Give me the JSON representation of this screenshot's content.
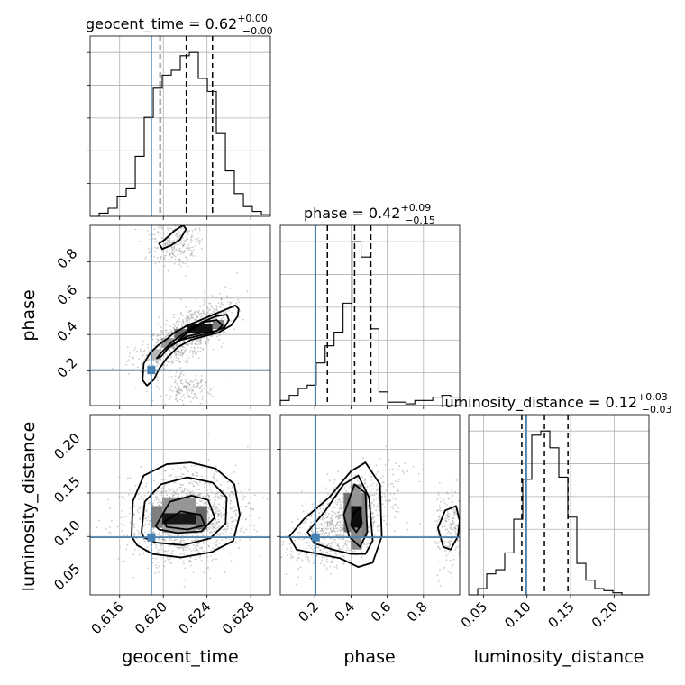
{
  "chart_data": {
    "type": "corner",
    "parameters": [
      "geocent_time",
      "phase",
      "luminosity_distance"
    ],
    "truths": {
      "geocent_time": 0.6189,
      "phase": 0.205,
      "luminosity_distance": 0.099
    },
    "truth_color": "#4682b4",
    "ranges": {
      "geocent_time": [
        0.6133,
        0.6298
      ],
      "phase": [
        0.01,
        1.0
      ],
      "luminosity_distance": [
        0.033,
        0.24
      ]
    },
    "ticks": {
      "geocent_time": {
        "values": [
          0.616,
          0.62,
          0.624,
          0.628
        ],
        "labels": [
          "0.616",
          "0.620",
          "0.624",
          "0.628"
        ]
      },
      "phase": {
        "values": [
          0.2,
          0.4,
          0.6,
          0.8
        ],
        "labels": [
          "0.2",
          "0.4",
          "0.6",
          "0.8"
        ]
      },
      "luminosity_distance": {
        "values": [
          0.05,
          0.1,
          0.15,
          0.2
        ],
        "labels": [
          "0.05",
          "0.10",
          "0.15",
          "0.20"
        ]
      }
    },
    "titles": [
      {
        "param": "geocent_time",
        "prefix": "geocent_time = 0.62",
        "plus": "+0.00",
        "minus": "−0.00"
      },
      {
        "param": "phase",
        "prefix": "phase = 0.42",
        "plus": "+0.09",
        "minus": "−0.15"
      },
      {
        "param": "luminosity_distance",
        "prefix": "luminosity_distance = 0.12",
        "plus": "+0.03",
        "minus": "−0.03"
      }
    ],
    "quantiles": {
      "geocent_time": [
        0.6197,
        0.6221,
        0.6245
      ],
      "phase": [
        0.27,
        0.42,
        0.51
      ],
      "luminosity_distance": [
        0.094,
        0.12,
        0.147
      ]
    },
    "histograms": {
      "geocent_time": {
        "edges": [
          0.6133,
          0.61413,
          0.61495,
          0.61578,
          0.6166,
          0.61743,
          0.61825,
          0.61908,
          0.6199,
          0.62073,
          0.62155,
          0.62238,
          0.6232,
          0.62403,
          0.62485,
          0.62568,
          0.6265,
          0.62733,
          0.62815,
          0.62898,
          0.6298
        ],
        "counts": [
          0,
          2,
          5,
          12,
          17,
          37,
          61,
          79,
          87,
          90,
          99,
          101,
          85,
          77,
          51,
          28,
          14,
          6,
          3,
          1
        ]
      },
      "phase": {
        "edges": [
          0.01,
          0.0595,
          0.109,
          0.1585,
          0.208,
          0.2575,
          0.307,
          0.3565,
          0.406,
          0.4555,
          0.505,
          0.5545,
          0.604,
          0.6535,
          0.703,
          0.7525,
          0.802,
          0.8515,
          0.901,
          0.9505,
          1.0
        ],
        "counts": [
          3,
          6,
          10,
          12,
          25,
          35,
          43,
          60,
          96,
          87,
          45,
          8,
          2,
          2,
          1,
          3,
          3,
          5,
          6,
          5
        ]
      },
      "luminosity_distance": {
        "edges": [
          0.033,
          0.04335,
          0.0537,
          0.06405,
          0.0744,
          0.08475,
          0.0951,
          0.10545,
          0.1158,
          0.12615,
          0.1365,
          0.14685,
          0.1572,
          0.16755,
          0.1779,
          0.18825,
          0.1986,
          0.20895,
          0.2193,
          0.22965,
          0.24
        ],
        "counts": [
          0,
          3,
          10,
          12,
          20,
          36,
          55,
          76,
          78,
          70,
          56,
          37,
          15,
          7,
          3,
          2,
          1,
          0,
          0,
          0
        ]
      }
    },
    "contours_2d": {
      "phase_vs_geocent_time": [
        {
          "x": [
            0.6182,
            0.6188,
            0.6195,
            0.6202,
            0.621,
            0.6222,
            0.6234,
            0.6246,
            0.6258,
            0.6266,
            0.6269,
            0.6268,
            0.6262,
            0.625,
            0.6237,
            0.6225,
            0.6213,
            0.6203,
            0.6196,
            0.6191,
            0.6185,
            0.6181
          ],
          "y": [
            0.24,
            0.3,
            0.34,
            0.37,
            0.41,
            0.45,
            0.48,
            0.51,
            0.54,
            0.56,
            0.54,
            0.5,
            0.45,
            0.41,
            0.39,
            0.37,
            0.33,
            0.27,
            0.21,
            0.15,
            0.12,
            0.15
          ]
        },
        {
          "x": [
            0.6198,
            0.6208,
            0.6222,
            0.6236,
            0.6248,
            0.6258,
            0.626,
            0.6256,
            0.6244,
            0.623,
            0.6216,
            0.6205,
            0.6198,
            0.6194
          ],
          "y": [
            0.3,
            0.36,
            0.42,
            0.47,
            0.5,
            0.51,
            0.48,
            0.44,
            0.41,
            0.39,
            0.37,
            0.33,
            0.28,
            0.27
          ]
        },
        {
          "x": [
            0.6212,
            0.6224,
            0.6238,
            0.6249,
            0.6254,
            0.6249,
            0.6236,
            0.6222,
            0.6212,
            0.6207
          ],
          "y": [
            0.36,
            0.42,
            0.47,
            0.48,
            0.45,
            0.42,
            0.41,
            0.39,
            0.36,
            0.34
          ]
        },
        {
          "x": [
            0.6199,
            0.6207,
            0.6215,
            0.6221,
            0.6218,
            0.621,
            0.6201,
            0.6196
          ],
          "y": [
            0.87,
            0.89,
            0.92,
            0.98,
            1.0,
            0.97,
            0.92,
            0.9
          ]
        }
      ],
      "lumdist_vs_geocent_time": [
        {
          "x": [
            0.6171,
            0.6172,
            0.6182,
            0.6203,
            0.6225,
            0.6248,
            0.6265,
            0.627,
            0.6264,
            0.6244,
            0.6216,
            0.619,
            0.6176
          ],
          "y": [
            0.1,
            0.14,
            0.17,
            0.183,
            0.185,
            0.178,
            0.16,
            0.125,
            0.095,
            0.082,
            0.076,
            0.08,
            0.09
          ]
        },
        {
          "x": [
            0.618,
            0.6183,
            0.6198,
            0.6222,
            0.6245,
            0.6258,
            0.6257,
            0.6243,
            0.6218,
            0.6193,
            0.6182
          ],
          "y": [
            0.105,
            0.14,
            0.16,
            0.168,
            0.162,
            0.145,
            0.115,
            0.098,
            0.09,
            0.093,
            0.099
          ]
        },
        {
          "x": [
            0.6193,
            0.6206,
            0.6226,
            0.6241,
            0.6247,
            0.6235,
            0.6213,
            0.6196
          ],
          "y": [
            0.112,
            0.14,
            0.147,
            0.142,
            0.122,
            0.106,
            0.104,
            0.108
          ]
        },
        {
          "x": [
            0.6201,
            0.6216,
            0.6234,
            0.6238,
            0.6222,
            0.6203
          ],
          "y": [
            0.117,
            0.129,
            0.125,
            0.113,
            0.108,
            0.111
          ]
        }
      ],
      "lumdist_vs_phase": [
        {
          "x": [
            0.06,
            0.14,
            0.28,
            0.4,
            0.48,
            0.56,
            0.57,
            0.52,
            0.44,
            0.34,
            0.22,
            0.1
          ],
          "y": [
            0.1,
            0.12,
            0.145,
            0.175,
            0.185,
            0.16,
            0.1,
            0.07,
            0.065,
            0.075,
            0.08,
            0.085
          ]
        },
        {
          "x": [
            0.16,
            0.26,
            0.36,
            0.44,
            0.5,
            0.52,
            0.48,
            0.4,
            0.3,
            0.2
          ],
          "y": [
            0.105,
            0.13,
            0.16,
            0.17,
            0.145,
            0.095,
            0.08,
            0.08,
            0.085,
            0.092
          ]
        },
        {
          "x": [
            0.36,
            0.42,
            0.48,
            0.49,
            0.45,
            0.39
          ],
          "y": [
            0.125,
            0.16,
            0.15,
            0.105,
            0.088,
            0.1
          ]
        },
        {
          "x": [
            0.41,
            0.45,
            0.46,
            0.43,
            0.4
          ],
          "y": [
            0.125,
            0.133,
            0.115,
            0.105,
            0.113
          ]
        },
        {
          "x": [
            0.92,
            0.98,
            1.0,
            0.99,
            0.95,
            0.91,
            0.88
          ],
          "y": [
            0.13,
            0.135,
            0.118,
            0.1,
            0.085,
            0.088,
            0.11
          ]
        }
      ]
    },
    "density_2d": {
      "phase_vs_geocent_time": [
        {
          "x0": 0.6222,
          "x1": 0.6245,
          "y0": 0.41,
          "y1": 0.46,
          "level": 0.92
        },
        {
          "x0": 0.621,
          "x1": 0.6222,
          "y0": 0.38,
          "y1": 0.43,
          "level": 0.55
        },
        {
          "x0": 0.6245,
          "x1": 0.6256,
          "y0": 0.43,
          "y1": 0.48,
          "level": 0.45
        },
        {
          "x0": 0.6198,
          "x1": 0.621,
          "y0": 0.33,
          "y1": 0.38,
          "level": 0.35
        },
        {
          "x0": 0.6188,
          "x1": 0.6198,
          "y0": 0.26,
          "y1": 0.32,
          "level": 0.2
        }
      ],
      "lumdist_vs_geocent_time": [
        {
          "x0": 0.6199,
          "x1": 0.623,
          "y0": 0.114,
          "y1": 0.127,
          "level": 0.9
        },
        {
          "x0": 0.6189,
          "x1": 0.6199,
          "y0": 0.11,
          "y1": 0.135,
          "level": 0.45
        },
        {
          "x0": 0.623,
          "x1": 0.624,
          "y0": 0.108,
          "y1": 0.135,
          "level": 0.55
        },
        {
          "x0": 0.6199,
          "x1": 0.623,
          "y0": 0.127,
          "y1": 0.145,
          "level": 0.35
        },
        {
          "x0": 0.6199,
          "x1": 0.623,
          "y0": 0.104,
          "y1": 0.114,
          "level": 0.3
        }
      ],
      "lumdist_vs_phase": [
        {
          "x0": 0.4,
          "x1": 0.46,
          "y0": 0.11,
          "y1": 0.135,
          "level": 0.95
        },
        {
          "x0": 0.36,
          "x1": 0.4,
          "y0": 0.105,
          "y1": 0.15,
          "level": 0.5
        },
        {
          "x0": 0.46,
          "x1": 0.49,
          "y0": 0.1,
          "y1": 0.15,
          "level": 0.45
        },
        {
          "x0": 0.4,
          "x1": 0.46,
          "y0": 0.135,
          "y1": 0.16,
          "level": 0.35
        },
        {
          "x0": 0.4,
          "x1": 0.46,
          "y0": 0.085,
          "y1": 0.11,
          "level": 0.4
        }
      ]
    },
    "axis_labels": {
      "geocent_time": "geocent_time",
      "phase": "phase",
      "luminosity_distance": "luminosity_distance"
    },
    "grid": true
  }
}
